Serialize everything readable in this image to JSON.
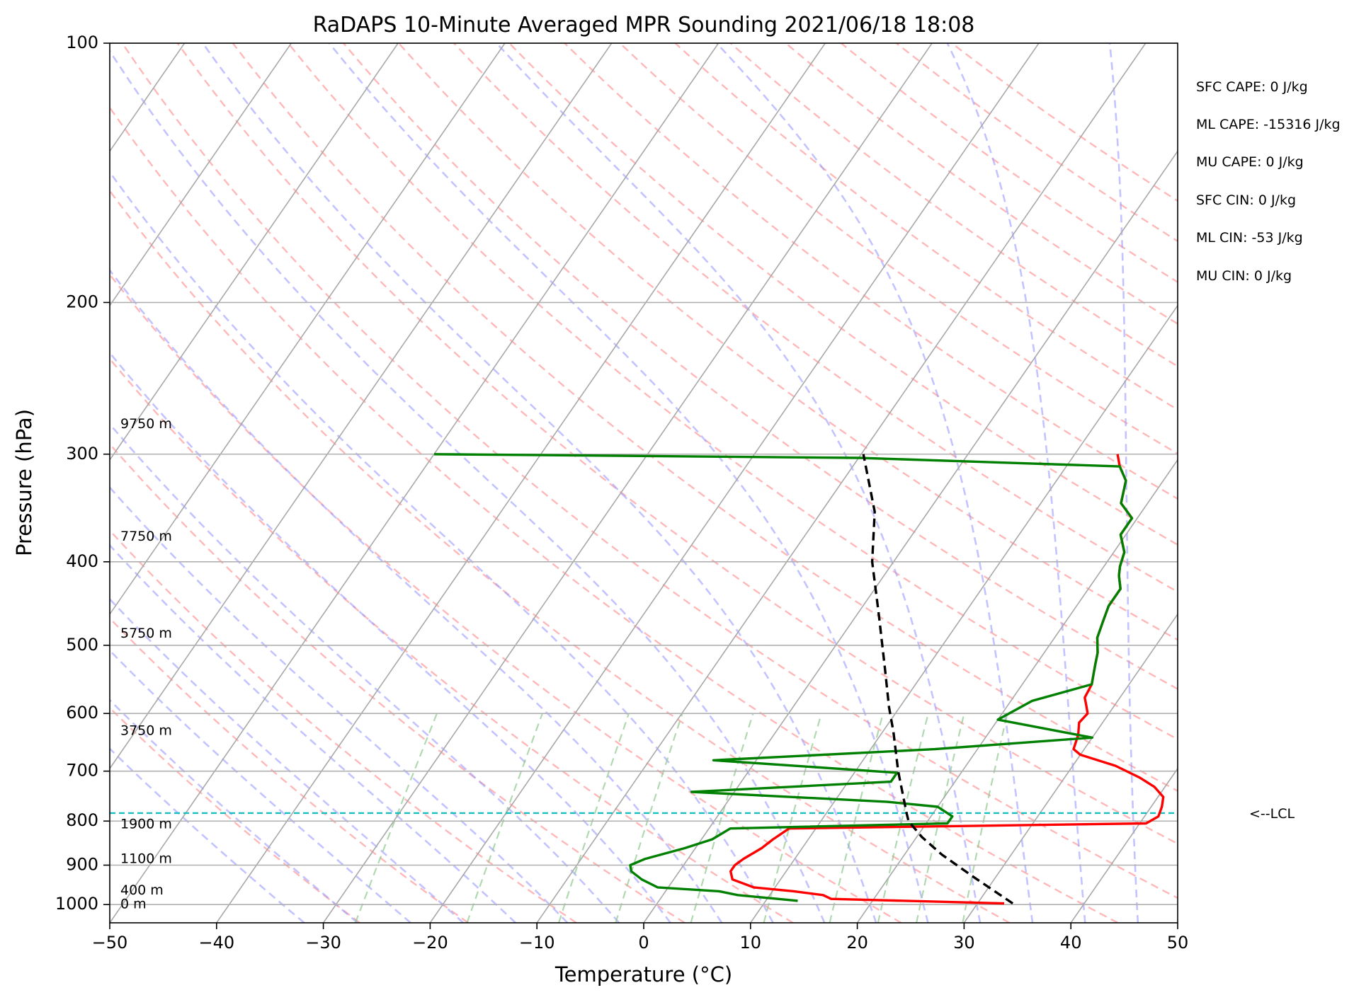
{
  "chart_data": {
    "type": "skew-t",
    "title": "RaDAPS 10-Minute Averaged MPR Sounding 2021/06/18 18:08",
    "xlabel": "Temperature (°C)",
    "ylabel": "Pressure (hPa)",
    "xlim": [
      -50,
      50
    ],
    "ylim": [
      1050,
      100
    ],
    "y_scale": "log",
    "grid": true,
    "x_ticks": [
      -50,
      -40,
      -30,
      -20,
      -10,
      0,
      10,
      20,
      30,
      40,
      50
    ],
    "x_tick_labels": [
      "−50",
      "−40",
      "−30",
      "−20",
      "−10",
      "0",
      "10",
      "20",
      "30",
      "40",
      "50"
    ],
    "y_ticks": [
      1000,
      900,
      800,
      700,
      600,
      500,
      400,
      300,
      200,
      100
    ],
    "y_tick_labels": [
      "1000",
      "900",
      "800",
      "700",
      "600",
      "500",
      "400",
      "300",
      "200",
      "100"
    ],
    "height_labels": [
      {
        "label": "9750 m",
        "p": 277
      },
      {
        "label": "7750 m",
        "p": 374
      },
      {
        "label": "5750 m",
        "p": 485
      },
      {
        "label": "3750 m",
        "p": 629
      },
      {
        "label": "1900 m",
        "p": 807
      },
      {
        "label": "1100 m",
        "p": 886
      },
      {
        "label": "400 m",
        "p": 963
      },
      {
        "label": "0 m",
        "p": 1000
      }
    ],
    "indices": [
      "SFC CAPE: 0 J/kg",
      "ML CAPE: -15316 J/kg",
      "MU CAPE: 0 J/kg",
      "SFC CIN: 0 J/kg",
      "ML CIN: -53 J/kg",
      "MU CIN: 0 J/kg"
    ],
    "lcl": {
      "p": 783,
      "label": "<--LCL"
    },
    "series": [
      {
        "kind": "temperature",
        "color": "#ff0000",
        "points": [
          [
            14,
            300
          ],
          [
            15,
            310
          ],
          [
            16.5,
            322
          ],
          [
            17.5,
            342
          ],
          [
            19.5,
            356
          ],
          [
            19.5,
            372
          ],
          [
            21,
            390
          ],
          [
            21.5,
            405
          ],
          [
            22,
            415
          ],
          [
            23,
            430
          ],
          [
            23,
            450
          ],
          [
            23.5,
            470
          ],
          [
            24,
            490
          ],
          [
            25,
            510
          ],
          [
            25.5,
            525
          ],
          [
            26,
            540
          ],
          [
            26.5,
            555
          ],
          [
            26.7,
            575
          ],
          [
            27.5,
            590
          ],
          [
            28,
            600
          ],
          [
            27.8,
            615
          ],
          [
            28.5,
            635
          ],
          [
            29,
            660
          ],
          [
            30,
            670
          ],
          [
            34,
            690
          ],
          [
            37,
            712
          ],
          [
            39,
            730
          ],
          [
            40.5,
            750
          ],
          [
            41,
            770
          ],
          [
            41.3,
            790
          ],
          [
            40.6,
            805
          ],
          [
            7.5,
            816
          ],
          [
            6.7,
            840
          ],
          [
            6.2,
            860
          ],
          [
            5.2,
            885
          ],
          [
            4.8,
            900
          ],
          [
            4.8,
            915
          ],
          [
            5.5,
            935
          ],
          [
            8,
            955
          ],
          [
            12,
            965
          ],
          [
            15,
            975
          ],
          [
            16,
            985
          ],
          [
            32.5,
            997
          ]
        ]
      },
      {
        "kind": "dewpoint",
        "color": "#008000",
        "points": [
          [
            -50,
            300
          ],
          [
            -10,
            303
          ],
          [
            15,
            310
          ],
          [
            16.5,
            322
          ],
          [
            17.5,
            342
          ],
          [
            19.5,
            356
          ],
          [
            19.5,
            372
          ],
          [
            21,
            390
          ],
          [
            21.5,
            405
          ],
          [
            22,
            415
          ],
          [
            23,
            430
          ],
          [
            23,
            450
          ],
          [
            23.5,
            470
          ],
          [
            24,
            490
          ],
          [
            25,
            510
          ],
          [
            25.5,
            525
          ],
          [
            26,
            540
          ],
          [
            26.5,
            555
          ],
          [
            22,
            580
          ],
          [
            20,
            610
          ],
          [
            30,
            640
          ],
          [
            16,
            660
          ],
          [
            -4,
            680
          ],
          [
            14,
            703
          ],
          [
            14,
            720
          ],
          [
            -4,
            740
          ],
          [
            15,
            760
          ],
          [
            20,
            770
          ],
          [
            22,
            790
          ],
          [
            22,
            805
          ],
          [
            2,
            816
          ],
          [
            1,
            840
          ],
          [
            -1,
            860
          ],
          [
            -4,
            885
          ],
          [
            -5,
            900
          ],
          [
            -4.5,
            915
          ],
          [
            -3,
            935
          ],
          [
            -1,
            955
          ],
          [
            5,
            965
          ],
          [
            7,
            975
          ],
          [
            11,
            985
          ],
          [
            13,
            990
          ]
        ]
      },
      {
        "kind": "parcel",
        "color": "#000000",
        "points": [
          [
            33.3,
            997
          ],
          [
            28,
            930
          ],
          [
            23.5,
            875
          ],
          [
            20.5,
            835
          ],
          [
            18.2,
            800
          ],
          [
            17.5,
            783
          ],
          [
            14,
            700
          ],
          [
            11,
            630
          ],
          [
            9,
            590
          ],
          [
            6,
            530
          ],
          [
            2,
            460
          ],
          [
            -2,
            400
          ],
          [
            -5,
            350
          ],
          [
            -9.8,
            300
          ]
        ]
      }
    ]
  }
}
